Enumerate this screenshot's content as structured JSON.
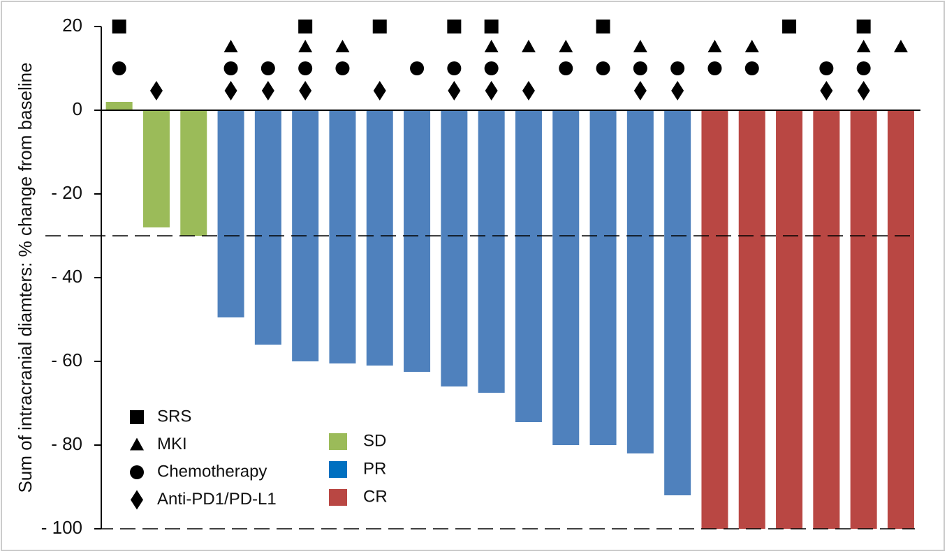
{
  "chart_data": {
    "type": "bar",
    "y_label": "Sum of intracranial diamters: % change from baseline",
    "categories": [
      null,
      null,
      null,
      null,
      null,
      null,
      null,
      null,
      null,
      null,
      null,
      null,
      null,
      null,
      null,
      null,
      null,
      null,
      null,
      null,
      null,
      null
    ],
    "series": [
      {
        "name": "SD",
        "color": "#9bbb59",
        "legend_color": "#9bbb59",
        "values": [
          2,
          -28,
          -30,
          null,
          null,
          null,
          null,
          null,
          null,
          null,
          null,
          null,
          null,
          null,
          null,
          null,
          null,
          null,
          null,
          null,
          null,
          null
        ]
      },
      {
        "name": "PR",
        "color": "#4f81bd",
        "legend_color": "#0070c0",
        "values": [
          null,
          null,
          null,
          -49.5,
          -56,
          -60,
          -60.5,
          -61,
          -62.5,
          -66,
          -67.5,
          -74.5,
          -80,
          -80,
          -82,
          -92,
          null,
          null,
          null,
          null,
          null,
          null
        ]
      },
      {
        "name": "CR",
        "color": "#b94743",
        "legend_color": "#b94743",
        "values": [
          null,
          null,
          null,
          null,
          null,
          null,
          null,
          null,
          null,
          null,
          null,
          null,
          null,
          null,
          null,
          null,
          -100,
          -100,
          -100,
          -100,
          -100,
          -100
        ]
      }
    ],
    "treatments": [
      {
        "name": "SRS",
        "symbol": "square",
        "present": [
          true,
          false,
          false,
          false,
          false,
          true,
          false,
          true,
          false,
          true,
          true,
          false,
          false,
          true,
          false,
          false,
          false,
          false,
          true,
          false,
          true,
          false
        ]
      },
      {
        "name": "MKI",
        "symbol": "triangle",
        "present": [
          false,
          false,
          false,
          true,
          false,
          true,
          true,
          false,
          false,
          false,
          true,
          true,
          true,
          false,
          true,
          false,
          true,
          true,
          false,
          false,
          true,
          true
        ]
      },
      {
        "name": "Chemotherapy",
        "symbol": "circle",
        "present": [
          true,
          false,
          false,
          true,
          true,
          true,
          true,
          false,
          true,
          true,
          true,
          false,
          true,
          true,
          true,
          true,
          true,
          true,
          false,
          true,
          true,
          false
        ]
      },
      {
        "name": "Anti-PD1/PD-L1",
        "symbol": "diamond",
        "present": [
          false,
          true,
          false,
          true,
          true,
          true,
          false,
          true,
          false,
          true,
          true,
          true,
          false,
          false,
          true,
          true,
          false,
          false,
          false,
          true,
          true,
          false
        ]
      }
    ],
    "reference_lines": [
      -30,
      -100
    ],
    "ylim": [
      -100,
      20
    ],
    "yticks": [
      20,
      0,
      {
        "value": -20,
        "label": "- 20"
      },
      {
        "value": -40,
        "label": "- 40"
      },
      {
        "value": -60,
        "label": "- 60"
      },
      {
        "value": -80,
        "label": "- 80"
      },
      {
        "value": -100,
        "label": "- 100"
      }
    ]
  }
}
